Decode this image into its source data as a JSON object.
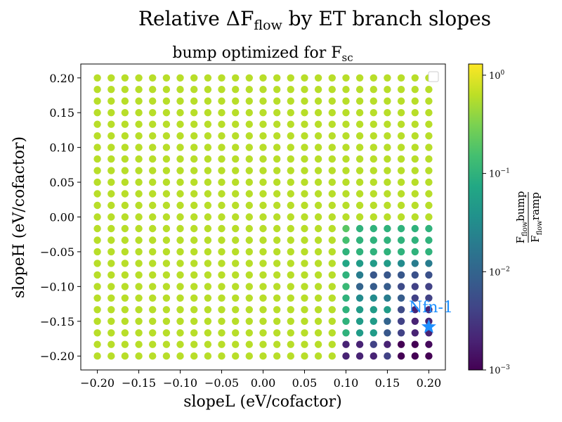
{
  "chart_data": {
    "type": "scatter",
    "suptitle": {
      "prefix": "Relative ΔF",
      "sub": "flow",
      "suffix": " by ET branch slopes"
    },
    "title": {
      "prefix": "bump optimized for F",
      "sub": "sc"
    },
    "xlabel": "slopeL (eV/cofactor)",
    "ylabel": "slopeH (eV/cofactor)",
    "xlim": [
      -0.22,
      0.22
    ],
    "ylim": [
      -0.22,
      0.22
    ],
    "xticks": [
      "−0.20",
      "−0.15",
      "−0.10",
      "−0.05",
      "0.00",
      "0.05",
      "0.10",
      "0.15",
      "0.20"
    ],
    "yticks": [
      "0.20",
      "0.15",
      "0.10",
      "0.05",
      "0.00",
      "−0.05",
      "−0.10",
      "−0.15",
      "−0.20"
    ],
    "grid": {
      "x_start": -0.2,
      "x_step": 0.016667,
      "y_start": -0.2,
      "y_step": 0.016667,
      "count": 25
    },
    "color_scale": "log",
    "colormap": "viridis",
    "color_range": [
      0.001,
      1.3
    ],
    "colorbar": {
      "ticks": [
        {
          "base": "10",
          "exp": "0",
          "value": 1
        },
        {
          "base": "10",
          "exp": "−1",
          "value": 0.1
        },
        {
          "base": "10",
          "exp": "−2",
          "value": 0.01
        },
        {
          "base": "10",
          "exp": "−3",
          "value": 0.001
        }
      ],
      "label": {
        "num_main": "F",
        "num_sub": "flow",
        "num_tail": "bump",
        "den_main": "F",
        "den_sub": "flow",
        "den_tail": "ramp"
      }
    },
    "marker": {
      "name": "Nfn-1",
      "x": 0.2,
      "y": -0.158,
      "color": "#1e90ff"
    },
    "legend": "top-right",
    "grid_lines": false,
    "rows": [
      [
        0.6,
        0.6,
        0.6,
        0.6,
        0.6,
        0.6,
        0.6,
        0.6,
        0.6,
        0.6,
        0.6,
        0.6,
        0.6,
        0.6,
        0.6,
        0.6,
        0.6,
        0.6,
        0.002,
        0.002,
        0.002,
        0.004,
        0.001,
        0.001,
        0.001
      ],
      [
        0.6,
        0.6,
        0.6,
        0.6,
        0.6,
        0.6,
        0.6,
        0.6,
        0.6,
        0.6,
        0.6,
        0.6,
        0.6,
        0.6,
        0.6,
        0.6,
        0.6,
        0.6,
        0.002,
        0.002,
        0.004,
        0.002,
        0.001,
        0.001,
        0.0012
      ],
      [
        0.6,
        0.6,
        0.6,
        0.6,
        0.6,
        0.6,
        0.6,
        0.6,
        0.6,
        0.6,
        0.6,
        0.6,
        0.6,
        0.6,
        0.6,
        0.6,
        0.6,
        0.6,
        0.1,
        0.05,
        0.05,
        0.007,
        0.004,
        0.002,
        0.002
      ],
      [
        0.6,
        0.6,
        0.6,
        0.6,
        0.6,
        0.6,
        0.6,
        0.6,
        0.6,
        0.6,
        0.6,
        0.6,
        0.6,
        0.6,
        0.6,
        0.6,
        0.6,
        0.6,
        0.1,
        0.05,
        0.05,
        0.01,
        0.004,
        0.002,
        0.002
      ],
      [
        0.6,
        0.6,
        0.6,
        0.6,
        0.6,
        0.6,
        0.6,
        0.6,
        0.6,
        0.6,
        0.6,
        0.6,
        0.6,
        0.6,
        0.6,
        0.6,
        0.6,
        0.6,
        0.1,
        0.05,
        0.05,
        0.05,
        0.005,
        0.002,
        0.002
      ],
      [
        0.6,
        0.6,
        0.6,
        0.6,
        0.6,
        0.6,
        0.6,
        0.6,
        0.6,
        0.6,
        0.6,
        0.6,
        0.6,
        0.6,
        0.6,
        0.6,
        0.6,
        0.6,
        0.1,
        0.03,
        0.03,
        0.02,
        0.008,
        0.004,
        0.004
      ],
      [
        0.6,
        0.6,
        0.6,
        0.6,
        0.6,
        0.6,
        0.6,
        0.6,
        0.6,
        0.6,
        0.6,
        0.6,
        0.6,
        0.6,
        0.6,
        0.6,
        0.6,
        0.6,
        0.12,
        0.01,
        0.008,
        0.008,
        0.005,
        0.004,
        0.004
      ],
      [
        0.6,
        0.6,
        0.6,
        0.6,
        0.6,
        0.6,
        0.6,
        0.6,
        0.6,
        0.6,
        0.6,
        0.6,
        0.6,
        0.6,
        0.6,
        0.6,
        0.6,
        0.6,
        0.1,
        0.02,
        0.007,
        0.007,
        0.007,
        0.006,
        0.006
      ],
      [
        0.6,
        0.6,
        0.6,
        0.6,
        0.6,
        0.6,
        0.6,
        0.6,
        0.6,
        0.6,
        0.6,
        0.6,
        0.6,
        0.6,
        0.6,
        0.6,
        0.6,
        0.6,
        0.07,
        0.05,
        0.05,
        0.05,
        0.03,
        0.02,
        0.02
      ],
      [
        0.6,
        0.6,
        0.6,
        0.6,
        0.6,
        0.6,
        0.6,
        0.6,
        0.6,
        0.6,
        0.6,
        0.6,
        0.6,
        0.6,
        0.6,
        0.6,
        0.6,
        0.6,
        0.1,
        0.1,
        0.1,
        0.1,
        0.1,
        0.1,
        0.1
      ],
      [
        0.6,
        0.6,
        0.6,
        0.6,
        0.6,
        0.6,
        0.6,
        0.6,
        0.6,
        0.6,
        0.6,
        0.6,
        0.6,
        0.6,
        0.6,
        0.6,
        0.6,
        0.6,
        0.15,
        0.1,
        0.1,
        0.1,
        0.1,
        0.1,
        0.1
      ],
      [
        0.6,
        0.6,
        0.6,
        0.6,
        0.6,
        0.6,
        0.6,
        0.6,
        0.6,
        0.6,
        0.6,
        0.6,
        0.6,
        0.6,
        0.6,
        0.6,
        0.6,
        0.6,
        0.2,
        0.1,
        0.1,
        0.1,
        0.1,
        0.1,
        0.1
      ],
      [
        0.6,
        0.6,
        0.6,
        0.6,
        0.6,
        0.6,
        0.6,
        0.6,
        0.6,
        0.6,
        0.6,
        0.6,
        0.6,
        0.6,
        0.6,
        0.6,
        0.6,
        0.6,
        0.6,
        0.6,
        0.6,
        0.6,
        0.6,
        0.6,
        0.6
      ],
      [
        0.6,
        0.6,
        0.6,
        0.6,
        0.6,
        0.6,
        0.6,
        0.6,
        0.6,
        0.6,
        0.6,
        0.6,
        0.6,
        0.6,
        0.6,
        0.6,
        0.6,
        0.6,
        0.6,
        0.6,
        0.6,
        0.6,
        0.6,
        0.6,
        0.6
      ],
      [
        0.6,
        0.6,
        0.6,
        0.6,
        0.6,
        0.6,
        0.6,
        0.6,
        0.6,
        0.6,
        0.6,
        0.6,
        0.6,
        0.6,
        0.6,
        0.6,
        0.6,
        0.6,
        0.6,
        0.6,
        0.6,
        0.6,
        0.6,
        0.6,
        0.6
      ],
      [
        0.6,
        0.6,
        0.6,
        0.6,
        0.6,
        0.6,
        0.6,
        0.6,
        0.6,
        0.6,
        0.6,
        0.6,
        0.6,
        0.6,
        0.6,
        0.6,
        0.6,
        0.6,
        0.6,
        0.6,
        0.6,
        0.6,
        0.6,
        0.6,
        0.6
      ],
      [
        0.6,
        0.6,
        0.6,
        0.6,
        0.6,
        0.6,
        0.6,
        0.6,
        0.6,
        0.6,
        0.6,
        0.6,
        0.6,
        0.6,
        0.6,
        0.6,
        0.6,
        0.6,
        0.6,
        0.6,
        0.6,
        0.6,
        0.6,
        0.6,
        0.6
      ],
      [
        0.6,
        0.6,
        0.6,
        0.6,
        0.6,
        0.6,
        0.6,
        0.6,
        0.6,
        0.6,
        0.6,
        0.6,
        0.6,
        0.6,
        0.6,
        0.6,
        0.6,
        0.6,
        0.6,
        0.6,
        0.6,
        0.6,
        0.6,
        0.6,
        0.6
      ],
      [
        0.6,
        0.6,
        0.6,
        0.6,
        0.6,
        0.6,
        0.6,
        0.6,
        0.6,
        0.6,
        0.6,
        0.6,
        0.6,
        0.6,
        0.6,
        0.6,
        0.6,
        0.6,
        0.6,
        0.6,
        0.6,
        0.6,
        0.6,
        0.6,
        0.6
      ],
      [
        0.6,
        0.6,
        0.6,
        0.6,
        0.6,
        0.6,
        0.6,
        0.6,
        0.6,
        0.6,
        0.6,
        0.6,
        0.6,
        0.6,
        0.6,
        0.6,
        0.6,
        0.6,
        0.6,
        0.6,
        0.6,
        0.6,
        0.6,
        0.6,
        0.6
      ],
      [
        0.6,
        0.6,
        0.6,
        0.6,
        0.6,
        0.6,
        0.6,
        0.6,
        0.6,
        0.6,
        0.6,
        0.6,
        0.6,
        0.6,
        0.6,
        0.6,
        0.6,
        0.6,
        0.6,
        0.6,
        0.6,
        0.6,
        0.6,
        0.6,
        0.6
      ],
      [
        0.6,
        0.6,
        0.6,
        0.6,
        0.6,
        0.6,
        0.6,
        0.6,
        0.6,
        0.6,
        0.6,
        0.6,
        0.6,
        0.6,
        0.6,
        0.6,
        0.6,
        0.6,
        0.6,
        0.6,
        0.6,
        0.6,
        0.6,
        0.6,
        0.6
      ],
      [
        0.6,
        0.6,
        0.6,
        0.6,
        0.6,
        0.6,
        0.6,
        0.6,
        0.6,
        0.6,
        0.6,
        0.6,
        0.6,
        0.6,
        0.6,
        0.6,
        0.6,
        0.6,
        0.6,
        0.6,
        0.6,
        0.6,
        0.6,
        0.6,
        0.6
      ],
      [
        0.6,
        0.6,
        0.6,
        0.6,
        0.6,
        0.6,
        0.6,
        0.6,
        0.6,
        0.6,
        0.6,
        0.6,
        0.6,
        0.6,
        0.6,
        0.6,
        0.6,
        0.6,
        0.6,
        0.6,
        0.6,
        0.6,
        0.6,
        0.6,
        0.6
      ],
      [
        0.6,
        0.6,
        0.6,
        0.6,
        0.6,
        0.6,
        0.6,
        0.6,
        0.6,
        0.6,
        0.6,
        0.6,
        0.6,
        0.6,
        0.6,
        0.6,
        0.6,
        0.6,
        0.6,
        0.6,
        0.6,
        0.6,
        0.6,
        0.6,
        0.6
      ]
    ]
  }
}
